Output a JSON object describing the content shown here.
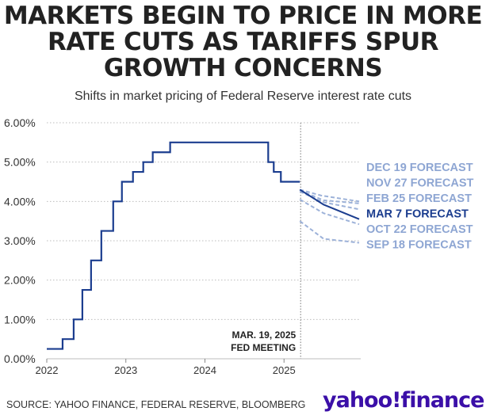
{
  "title": "MARKETS BEGIN TO PRICE IN MORE RATE CUTS AS TARIFFS SPUR GROWTH CONCERNS",
  "subtitle": "Shifts in market pricing of Federal Reserve interest rate cuts",
  "source": "SOURCE: YAHOO FINANCE, FEDERAL RESERVE, BLOOMBERG",
  "logo": {
    "main": "yahoo",
    "bang": "!",
    "second": "finance"
  },
  "colors": {
    "actual": "#1b3d8f",
    "highlight": "#1b3d8f",
    "forecast": "#9db2d9",
    "forecast_label": "#8ea6d3",
    "logo": "#5f01d1"
  },
  "chart_data": {
    "type": "line",
    "x_unit": "year",
    "xlim": [
      2022.0,
      2025.97
    ],
    "ylim": [
      0,
      6
    ],
    "yticks": [
      0,
      1,
      2,
      3,
      4,
      5,
      6
    ],
    "ytick_labels": [
      "0.00%",
      "1.00%",
      "2.00%",
      "3.00%",
      "4.00%",
      "5.00%",
      "6.00%"
    ],
    "xticks": [
      2022,
      2023,
      2024,
      2025
    ],
    "xtick_labels": [
      "2022",
      "2023",
      "2024",
      "2025"
    ],
    "grid": "horizontal dotted",
    "actual_series": {
      "step": true,
      "x": [
        2022.0,
        2022.2,
        2022.34,
        2022.45,
        2022.56,
        2022.69,
        2022.84,
        2022.95,
        2023.09,
        2023.22,
        2023.34,
        2023.56,
        2024.7,
        2024.8,
        2024.87,
        2024.96,
        2025.2
      ],
      "y": [
        0.25,
        0.5,
        1.0,
        1.75,
        2.5,
        3.25,
        4.0,
        4.5,
        4.75,
        5.0,
        5.25,
        5.5,
        5.5,
        5.0,
        4.75,
        4.5,
        4.5
      ]
    },
    "forecasts": [
      {
        "name": "DEC 19 FORECAST",
        "dashed": true,
        "highlight": false,
        "x": [
          2025.2,
          2025.47,
          2025.95
        ],
        "y": [
          4.3,
          4.15,
          4.0
        ]
      },
      {
        "name": "NOV 27 FORECAST",
        "dashed": true,
        "highlight": false,
        "x": [
          2025.2,
          2025.5,
          2025.95
        ],
        "y": [
          4.28,
          4.03,
          3.95
        ]
      },
      {
        "name": "FEB 25 FORECAST",
        "dashed": true,
        "highlight": false,
        "x": [
          2025.2,
          2025.5,
          2025.95
        ],
        "y": [
          4.25,
          3.98,
          3.8
        ]
      },
      {
        "name": "MAR 7 FORECAST",
        "dashed": false,
        "highlight": true,
        "x": [
          2025.2,
          2025.5,
          2025.95
        ],
        "y": [
          4.3,
          3.92,
          3.55
        ]
      },
      {
        "name": "OCT 22 FORECAST",
        "dashed": true,
        "highlight": false,
        "x": [
          2025.2,
          2025.5,
          2025.95
        ],
        "y": [
          4.05,
          3.7,
          3.42
        ]
      },
      {
        "name": "SEP 18 FORECAST",
        "dashed": true,
        "highlight": false,
        "x": [
          2025.2,
          2025.5,
          2025.95
        ],
        "y": [
          3.5,
          3.05,
          2.95
        ]
      }
    ],
    "annotation": {
      "x": 2025.21,
      "lines": [
        "MAR. 19, 2025",
        "FED MEETING"
      ]
    }
  }
}
